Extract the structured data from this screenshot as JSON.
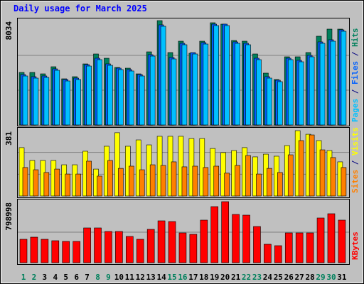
{
  "chart_data": [
    {
      "type": "bar",
      "title": "Daily usage for March 2025",
      "separator": "/",
      "ylim": [
        0,
        8034
      ],
      "yticks": [
        8034
      ],
      "series": [
        {
          "name": "Hits",
          "color": "#00805c",
          "values": [
            4044,
            4044,
            3935,
            4482,
            3553,
            3716,
            4700,
            5465,
            5137,
            4427,
            4372,
            3935,
            5629,
            8034,
            5575,
            6449,
            5520,
            6449,
            7870,
            7761,
            6504,
            6449,
            5465,
            3990,
            3498,
            5247,
            5247,
            5575,
            6832,
            7378,
            7378
          ]
        },
        {
          "name": "Files",
          "color": "#0060ff",
          "values": [
            3881,
            3717,
            3772,
            4318,
            3498,
            3608,
            4646,
            5138,
            4701,
            4373,
            4264,
            3881,
            5411,
            7707,
            5193,
            6286,
            5575,
            6340,
            7761,
            7761,
            6395,
            6286,
            5138,
            3717,
            3444,
            5138,
            4974,
            5357,
            6395,
            6559,
            7324
          ]
        },
        {
          "name": "Pages",
          "color": "#00c0ff",
          "values": [
            3771,
            3607,
            3662,
            4208,
            3388,
            3498,
            4536,
            5028,
            4591,
            4263,
            4154,
            3771,
            5301,
            7597,
            5083,
            6176,
            5465,
            6230,
            7651,
            7651,
            6285,
            6176,
            5028,
            3607,
            3334,
            5028,
            4864,
            5247,
            6285,
            6449,
            7214
          ]
        }
      ]
    },
    {
      "type": "bar",
      "ylim": [
        0,
        381
      ],
      "yticks": [
        381
      ],
      "series": [
        {
          "name": "Visits",
          "color": "#ffff00",
          "values": [
            282,
            207,
            207,
            207,
            182,
            182,
            261,
            157,
            290,
            369,
            290,
            327,
            298,
            348,
            348,
            348,
            335,
            335,
            277,
            253,
            265,
            282,
            228,
            244,
            232,
            294,
            381,
            360,
            323,
            265,
            199
          ]
        },
        {
          "name": "Sites",
          "color": "#ff8000",
          "values": [
            166,
            153,
            137,
            157,
            128,
            128,
            203,
            116,
            207,
            161,
            174,
            153,
            182,
            178,
            199,
            170,
            174,
            166,
            174,
            133,
            178,
            236,
            128,
            161,
            137,
            240,
            323,
            356,
            269,
            224,
            166
          ]
        }
      ]
    },
    {
      "type": "bar",
      "ylim": [
        0,
        798998
      ],
      "yticks": [
        798998
      ],
      "categories": [
        "1",
        "2",
        "3",
        "4",
        "5",
        "6",
        "7",
        "8",
        "9",
        "10",
        "11",
        "12",
        "13",
        "14",
        "15",
        "16",
        "17",
        "18",
        "19",
        "20",
        "21",
        "22",
        "23",
        "24",
        "25",
        "26",
        "27",
        "28",
        "29",
        "30",
        "31"
      ],
      "series": [
        {
          "name": "KBytes",
          "color": "#ff0000",
          "values": [
            306593,
            334465,
            306593,
            288012,
            278721,
            278721,
            455244,
            455244,
            408791,
            408791,
            343756,
            306593,
            436663,
            548151,
            538861,
            390209,
            371628,
            557442,
            733965,
            798998,
            631768,
            622477,
            473826,
            241558,
            222977,
            390209,
            390209,
            390209,
            585314,
            641058,
            557442
          ]
        }
      ]
    }
  ]
}
